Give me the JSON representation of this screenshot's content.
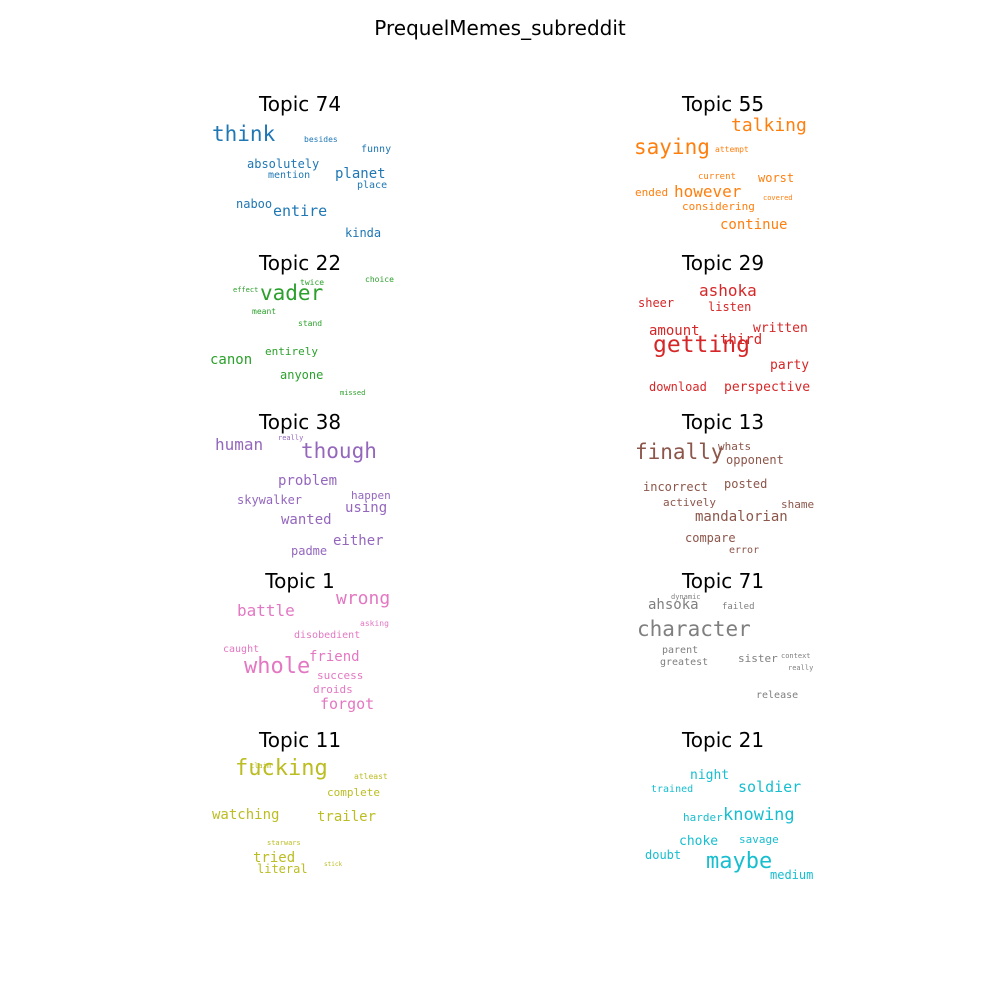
{
  "figure": {
    "title": "PrequelMemes_subreddit"
  },
  "chart_data": {
    "type": "wordcloud",
    "panels": [
      {
        "title": "Topic 74",
        "color": "#1f77b4",
        "words": [
          {
            "text": "think",
            "weight": 1.0
          },
          {
            "text": "planet",
            "weight": 0.72
          },
          {
            "text": "entire",
            "weight": 0.7
          },
          {
            "text": "absolutely",
            "weight": 0.6
          },
          {
            "text": "naboo",
            "weight": 0.58
          },
          {
            "text": "kinda",
            "weight": 0.55
          },
          {
            "text": "mention",
            "weight": 0.52
          },
          {
            "text": "place",
            "weight": 0.52
          },
          {
            "text": "funny",
            "weight": 0.5
          },
          {
            "text": "besides",
            "weight": 0.45
          }
        ]
      },
      {
        "title": "Topic 55",
        "color": "#ff7f0e",
        "words": [
          {
            "text": "saying",
            "weight": 1.0
          },
          {
            "text": "talking",
            "weight": 0.9
          },
          {
            "text": "however",
            "weight": 0.82
          },
          {
            "text": "continue",
            "weight": 0.72
          },
          {
            "text": "worst",
            "weight": 0.62
          },
          {
            "text": "considering",
            "weight": 0.55
          },
          {
            "text": "ended",
            "weight": 0.5
          },
          {
            "text": "current",
            "weight": 0.45
          },
          {
            "text": "attempt",
            "weight": 0.4
          },
          {
            "text": "covered",
            "weight": 0.35
          }
        ]
      },
      {
        "title": "Topic 22",
        "color": "#2ca02c",
        "words": [
          {
            "text": "vader",
            "weight": 1.0
          },
          {
            "text": "canon",
            "weight": 0.65
          },
          {
            "text": "anyone",
            "weight": 0.6
          },
          {
            "text": "entirely",
            "weight": 0.55
          },
          {
            "text": "twice",
            "weight": 0.4
          },
          {
            "text": "choice",
            "weight": 0.38
          },
          {
            "text": "effect",
            "weight": 0.36
          },
          {
            "text": "meant",
            "weight": 0.36
          },
          {
            "text": "stand",
            "weight": 0.35
          },
          {
            "text": "missed",
            "weight": 0.32
          }
        ]
      },
      {
        "title": "Topic 29",
        "color": "#d62728",
        "words": [
          {
            "text": "getting",
            "weight": 1.0
          },
          {
            "text": "ashoka",
            "weight": 0.75
          },
          {
            "text": "amount",
            "weight": 0.7
          },
          {
            "text": "third",
            "weight": 0.68
          },
          {
            "text": "written",
            "weight": 0.66
          },
          {
            "text": "perspective",
            "weight": 0.62
          },
          {
            "text": "party",
            "weight": 0.6
          },
          {
            "text": "download",
            "weight": 0.58
          },
          {
            "text": "listen",
            "weight": 0.56
          },
          {
            "text": "sheer",
            "weight": 0.54
          }
        ]
      },
      {
        "title": "Topic 38",
        "color": "#9467bd",
        "words": [
          {
            "text": "though",
            "weight": 1.0
          },
          {
            "text": "human",
            "weight": 0.72
          },
          {
            "text": "problem",
            "weight": 0.65
          },
          {
            "text": "wanted",
            "weight": 0.65
          },
          {
            "text": "either",
            "weight": 0.62
          },
          {
            "text": "using",
            "weight": 0.6
          },
          {
            "text": "padme",
            "weight": 0.58
          },
          {
            "text": "skywalker",
            "weight": 0.56
          },
          {
            "text": "happen",
            "weight": 0.52
          },
          {
            "text": "really",
            "weight": 0.38
          }
        ]
      },
      {
        "title": "Topic 13",
        "color": "#8c564b",
        "words": [
          {
            "text": "finally",
            "weight": 1.0
          },
          {
            "text": "mandalorian",
            "weight": 0.72
          },
          {
            "text": "opponent",
            "weight": 0.6
          },
          {
            "text": "incorrect",
            "weight": 0.6
          },
          {
            "text": "compare",
            "weight": 0.58
          },
          {
            "text": "posted",
            "weight": 0.56
          },
          {
            "text": "shame",
            "weight": 0.54
          },
          {
            "text": "actively",
            "weight": 0.54
          },
          {
            "text": "whats",
            "weight": 0.52
          },
          {
            "text": "error",
            "weight": 0.48
          }
        ]
      },
      {
        "title": "Topic 1",
        "color": "#e377c2",
        "words": [
          {
            "text": "whole",
            "weight": 1.0
          },
          {
            "text": "wrong",
            "weight": 0.82
          },
          {
            "text": "battle",
            "weight": 0.8
          },
          {
            "text": "forgot",
            "weight": 0.7
          },
          {
            "text": "friend",
            "weight": 0.68
          },
          {
            "text": "success",
            "weight": 0.55
          },
          {
            "text": "droids",
            "weight": 0.55
          },
          {
            "text": "disobedient",
            "weight": 0.5
          },
          {
            "text": "caught",
            "weight": 0.5
          },
          {
            "text": "asking",
            "weight": 0.45
          }
        ]
      },
      {
        "title": "Topic 71",
        "color": "#7f7f7f",
        "words": [
          {
            "text": "character",
            "weight": 1.0
          },
          {
            "text": "ahsoka",
            "weight": 0.7
          },
          {
            "text": "sister",
            "weight": 0.55
          },
          {
            "text": "release",
            "weight": 0.52
          },
          {
            "text": "greatest",
            "weight": 0.5
          },
          {
            "text": "parent",
            "weight": 0.48
          },
          {
            "text": "failed",
            "weight": 0.45
          },
          {
            "text": "really",
            "weight": 0.4
          },
          {
            "text": "context",
            "weight": 0.35
          },
          {
            "text": "dynamic",
            "weight": 0.35
          }
        ]
      },
      {
        "title": "Topic 11",
        "color": "#bcbd22",
        "words": [
          {
            "text": "fucking",
            "weight": 1.0
          },
          {
            "text": "watching",
            "weight": 0.62
          },
          {
            "text": "trailer",
            "weight": 0.62
          },
          {
            "text": "tried",
            "weight": 0.6
          },
          {
            "text": "literal",
            "weight": 0.55
          },
          {
            "text": "complete",
            "weight": 0.5
          },
          {
            "text": "atleast",
            "weight": 0.4
          },
          {
            "text": "claim",
            "weight": 0.35
          },
          {
            "text": "starwars",
            "weight": 0.35
          },
          {
            "text": "stick",
            "weight": 0.32
          }
        ]
      },
      {
        "title": "Topic 21",
        "color": "#17becf",
        "words": [
          {
            "text": "maybe",
            "weight": 1.0
          },
          {
            "text": "knowing",
            "weight": 0.8
          },
          {
            "text": "soldier",
            "weight": 0.78
          },
          {
            "text": "night",
            "weight": 0.68
          },
          {
            "text": "choke",
            "weight": 0.68
          },
          {
            "text": "doubt",
            "weight": 0.62
          },
          {
            "text": "medium",
            "weight": 0.6
          },
          {
            "text": "harder",
            "weight": 0.58
          },
          {
            "text": "savage",
            "weight": 0.56
          },
          {
            "text": "trained",
            "weight": 0.52
          }
        ]
      }
    ]
  }
}
